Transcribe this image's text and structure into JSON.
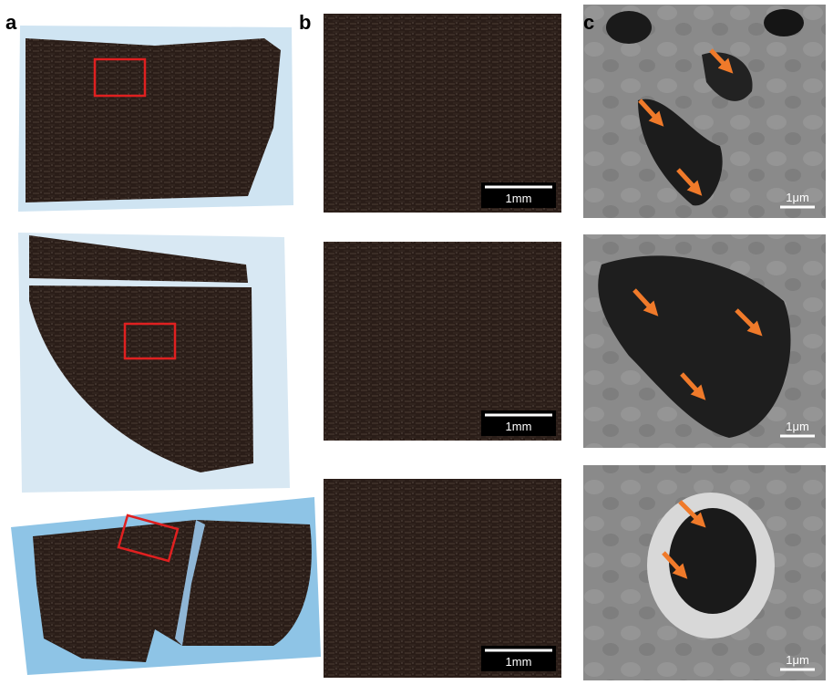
{
  "panels": [
    {
      "label": "a"
    },
    {
      "label": "b",
      "scale_bars": [
        "1mm",
        "1mm",
        "1mm"
      ]
    },
    {
      "label": "c",
      "scale_bars": [
        "1μm",
        "1μm",
        "1μm"
      ]
    }
  ]
}
